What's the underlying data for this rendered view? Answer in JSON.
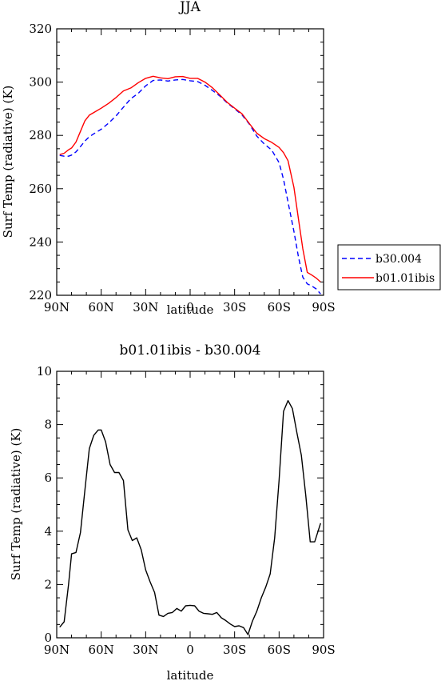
{
  "chart_data": [
    {
      "type": "line",
      "title": "JJA",
      "xlabel": "latitude",
      "ylabel": "Surf Temp (radiative) (K)",
      "xlim": [
        90,
        -90
      ],
      "ylim": [
        220,
        320
      ],
      "xticks": [
        90,
        60,
        30,
        0,
        -30,
        -60,
        -90
      ],
      "xtick_labels": [
        "90N",
        "60N",
        "30N",
        "0",
        "30S",
        "60S",
        "90S"
      ],
      "yticks": [
        220,
        240,
        260,
        280,
        300,
        320
      ],
      "ytick_labels": [
        "220",
        "240",
        "260",
        "280",
        "300",
        "320"
      ],
      "grid": false,
      "legend_position": "right-outside",
      "series": [
        {
          "name": "b30.004",
          "color": "#0000ff",
          "dash": "dashed",
          "x": [
            88,
            85,
            82,
            80,
            77,
            74,
            71,
            68,
            65,
            60,
            55,
            50,
            45,
            40,
            35,
            30,
            25,
            20,
            15,
            10,
            5,
            0,
            -5,
            -10,
            -15,
            -20,
            -25,
            -30,
            -35,
            -40,
            -45,
            -50,
            -55,
            -60,
            -63,
            -66,
            -70,
            -73,
            -76,
            -79,
            -82,
            -85,
            -88
          ],
          "values": [
            272.5,
            272.2,
            272.2,
            272.6,
            273.8,
            275.8,
            277.9,
            279.5,
            280.6,
            282.3,
            284.6,
            287.3,
            290.6,
            293.8,
            295.8,
            298.6,
            300.6,
            300.8,
            300.4,
            300.8,
            301,
            300.5,
            300.2,
            298.8,
            296.9,
            294.8,
            292.2,
            290,
            287.7,
            284.2,
            279.7,
            276.8,
            274.5,
            269.8,
            263.5,
            255,
            244,
            234.5,
            226.8,
            224.3,
            223.5,
            222.4,
            220.5
          ]
        },
        {
          "name": "b01.01ibis",
          "color": "#ff0000",
          "dash": "solid",
          "x": [
            88,
            85,
            82,
            80,
            77,
            74,
            71,
            68,
            65,
            60,
            55,
            50,
            45,
            40,
            35,
            30,
            25,
            20,
            15,
            10,
            5,
            0,
            -5,
            -10,
            -15,
            -20,
            -25,
            -30,
            -35,
            -40,
            -45,
            -50,
            -55,
            -60,
            -63,
            -66,
            -70,
            -73,
            -76,
            -79,
            -82,
            -85,
            -88
          ],
          "values": [
            272.8,
            273.3,
            274.6,
            275.3,
            277.5,
            281.5,
            285.5,
            287.6,
            288.6,
            290.2,
            292,
            294.2,
            296.7,
            297.8,
            299.8,
            301.4,
            302.2,
            301.6,
            301.3,
            302,
            302.1,
            301.4,
            301.4,
            300,
            297.9,
            295.2,
            292.4,
            290.2,
            288.1,
            284.4,
            280.8,
            278.8,
            277.4,
            275.5,
            273.5,
            270.5,
            260.5,
            248.8,
            237.5,
            228.6,
            227.6,
            226.5,
            225
          ]
        }
      ]
    },
    {
      "type": "line",
      "title": "b01.01ibis - b30.004",
      "xlabel": "latitude",
      "ylabel": "Surf Temp (radiative) (K)",
      "xlim": [
        90,
        -90
      ],
      "ylim": [
        0,
        10
      ],
      "xticks": [
        90,
        60,
        30,
        0,
        -30,
        -60,
        -90
      ],
      "xtick_labels": [
        "90N",
        "60N",
        "30N",
        "0",
        "30S",
        "60S",
        "90S"
      ],
      "yticks": [
        0,
        2,
        4,
        6,
        8,
        10
      ],
      "ytick_labels": [
        "0",
        "2",
        "4",
        "6",
        "8",
        "10"
      ],
      "grid": false,
      "series": [
        {
          "color": "#000000",
          "dash": "solid",
          "x": [
            88,
            85,
            82,
            80,
            77,
            74,
            71,
            68,
            65,
            62,
            60,
            57,
            54,
            51,
            48,
            45,
            42,
            39,
            36,
            33,
            30,
            27,
            24,
            21,
            18,
            15,
            12,
            9,
            6,
            3,
            0,
            -3,
            -6,
            -9,
            -12,
            -15,
            -18,
            -21,
            -24,
            -27,
            -30,
            -33,
            -36,
            -39,
            -42,
            -45,
            -48,
            -51,
            -54,
            -57,
            -60,
            -63,
            -66,
            -69,
            -72,
            -75,
            -78,
            -81,
            -84,
            -88
          ],
          "values": [
            0.4,
            0.6,
            2.0,
            3.15,
            3.2,
            3.95,
            5.55,
            7.1,
            7.6,
            7.8,
            7.8,
            7.35,
            6.5,
            6.2,
            6.2,
            5.9,
            4.05,
            3.65,
            3.75,
            3.3,
            2.55,
            2.1,
            1.7,
            0.85,
            0.8,
            0.92,
            0.95,
            1.1,
            1.0,
            1.2,
            1.22,
            1.2,
            1.0,
            0.92,
            0.9,
            0.88,
            0.95,
            0.75,
            0.65,
            0.52,
            0.42,
            0.45,
            0.38,
            0.12,
            0.62,
            1.0,
            1.5,
            1.9,
            2.4,
            3.75,
            5.9,
            8.5,
            8.9,
            8.6,
            7.7,
            6.85,
            5.35,
            3.6,
            3.6,
            4.3
          ]
        }
      ]
    }
  ]
}
